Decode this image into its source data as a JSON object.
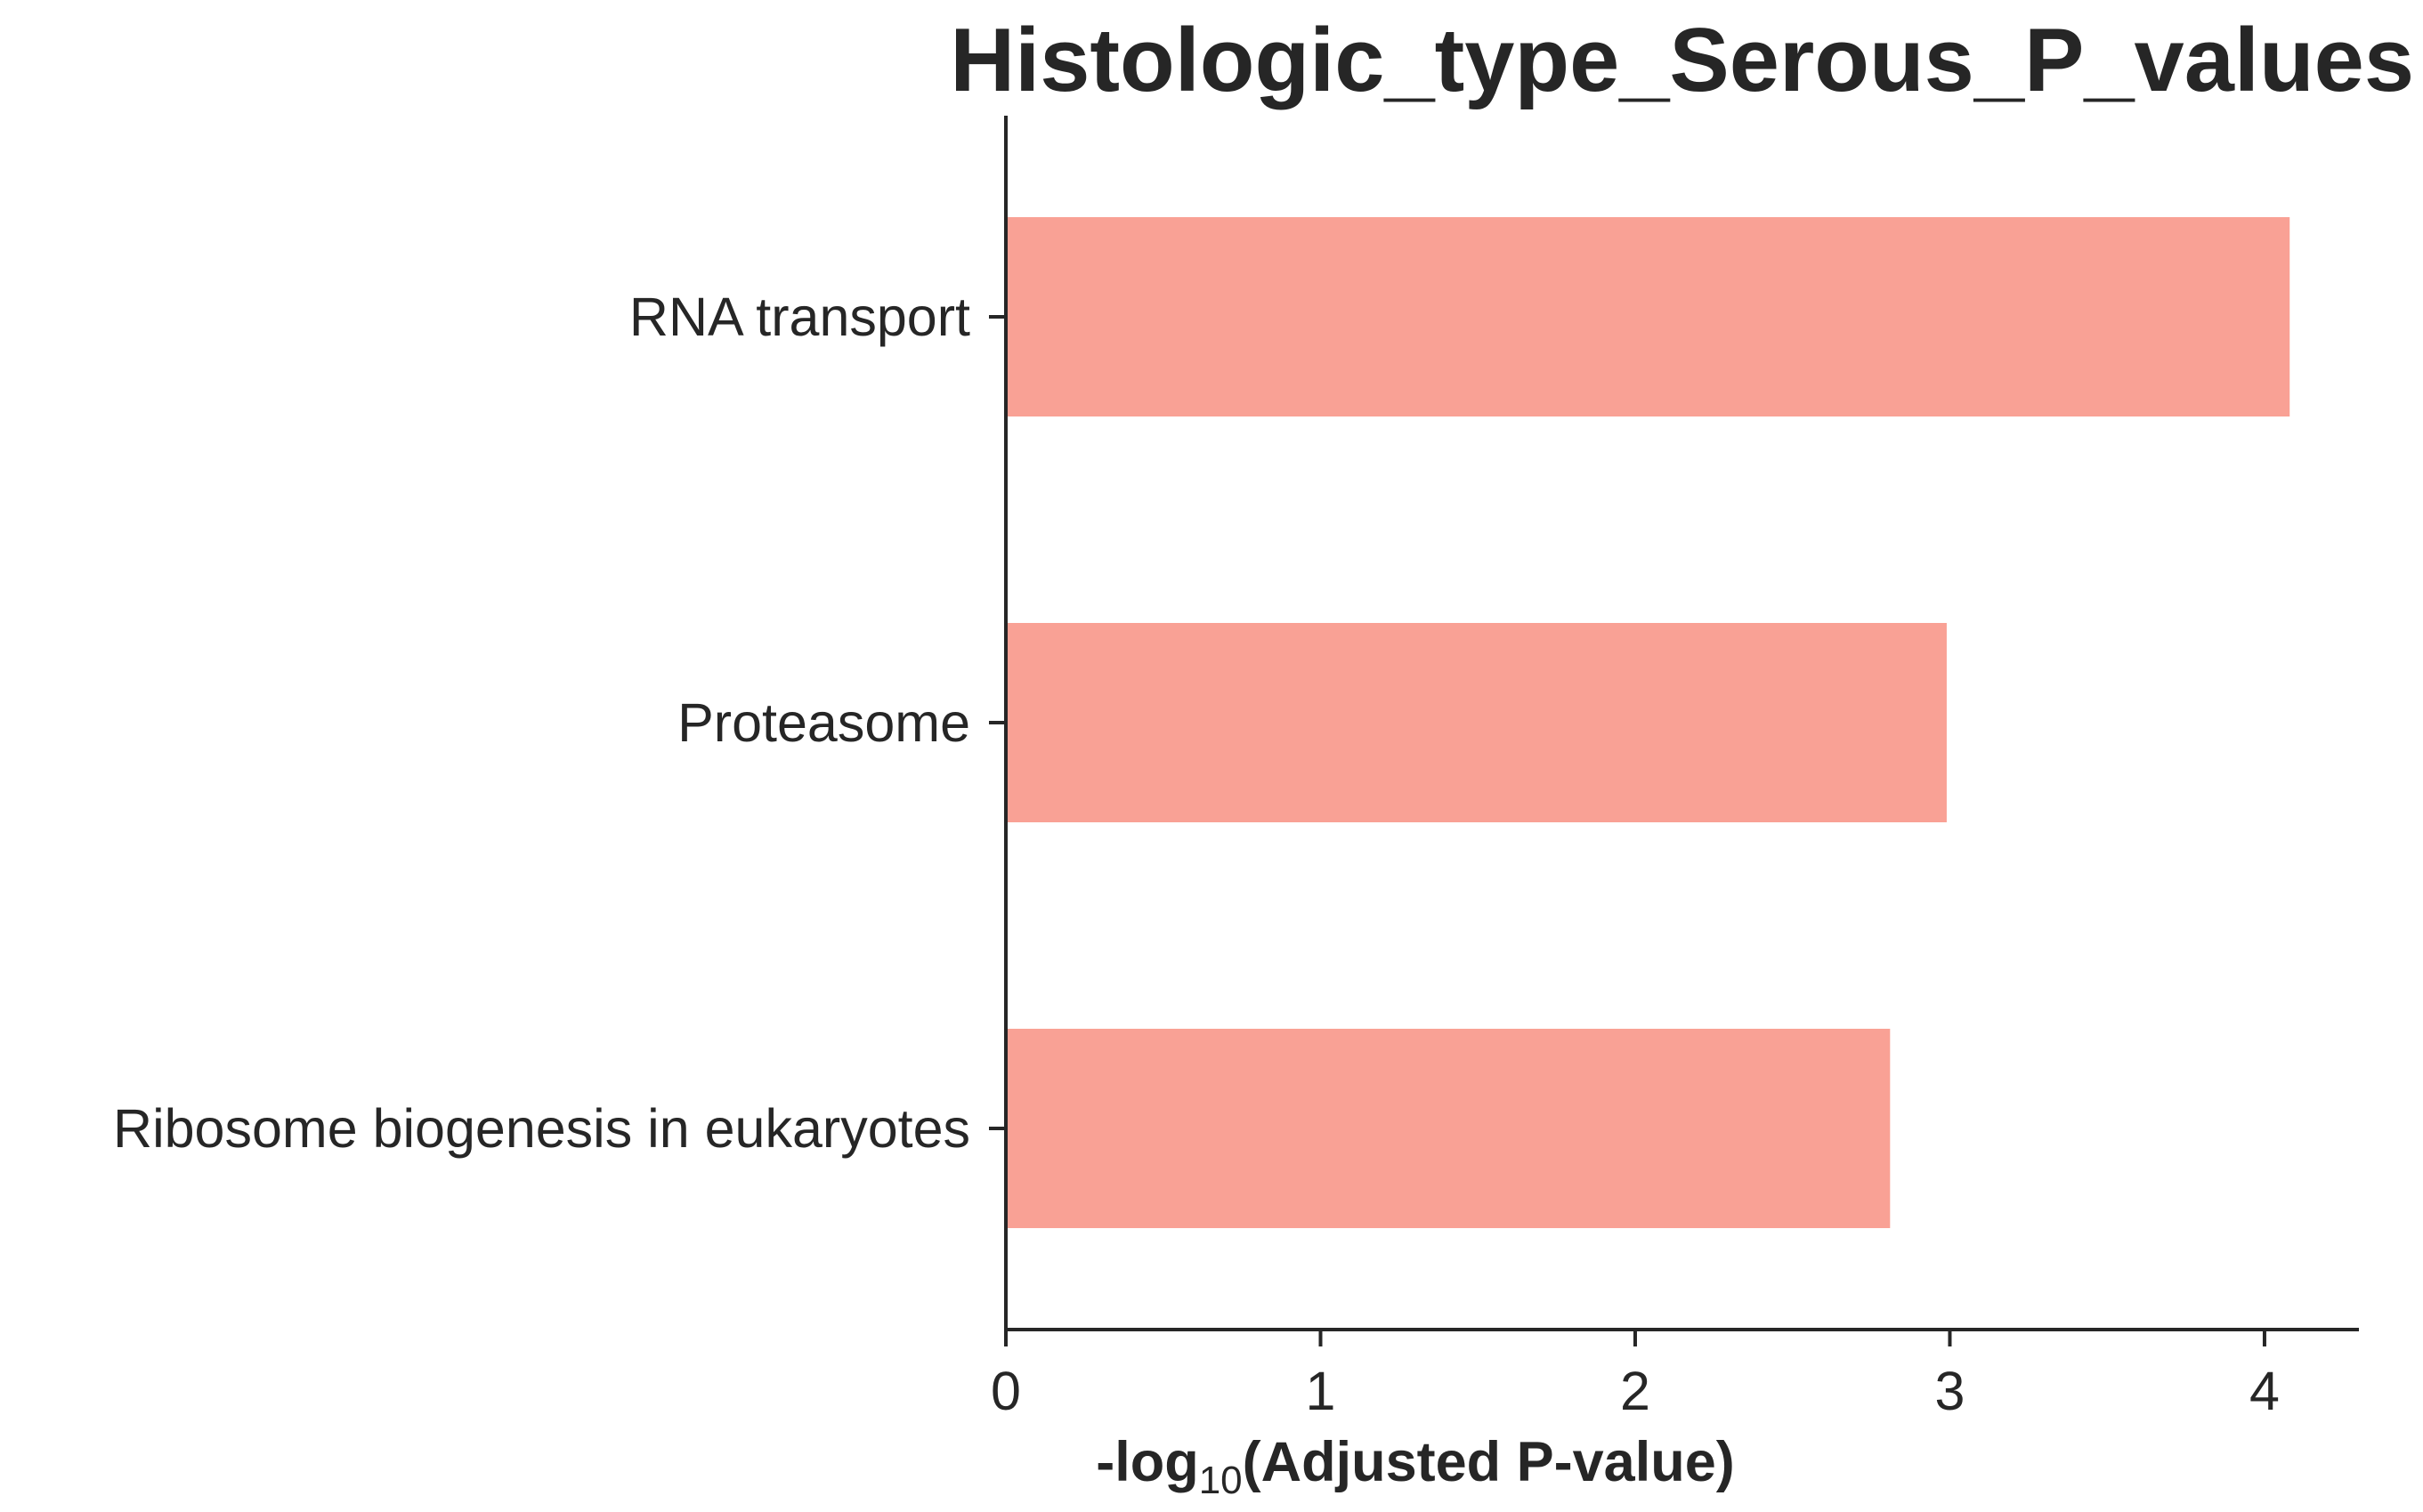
{
  "chart_data": {
    "type": "bar",
    "orientation": "horizontal",
    "title": "Histologic_type_Serous_P_values",
    "xlabel": {
      "prefix": "-log",
      "subscript": "10",
      "suffix": "(Adjusted P-value)"
    },
    "ylabel": "",
    "categories": [
      "RNA transport",
      "Proteasome",
      "Ribosome biogenesis in eukaryotes"
    ],
    "values": [
      4.08,
      2.99,
      2.81
    ],
    "xlim": [
      0,
      4.3
    ],
    "xticks": [
      "0",
      "1",
      "2",
      "3",
      "4"
    ],
    "bar_color": "#f9a195",
    "axis_color": "#262626",
    "grid": false,
    "legend": null
  }
}
